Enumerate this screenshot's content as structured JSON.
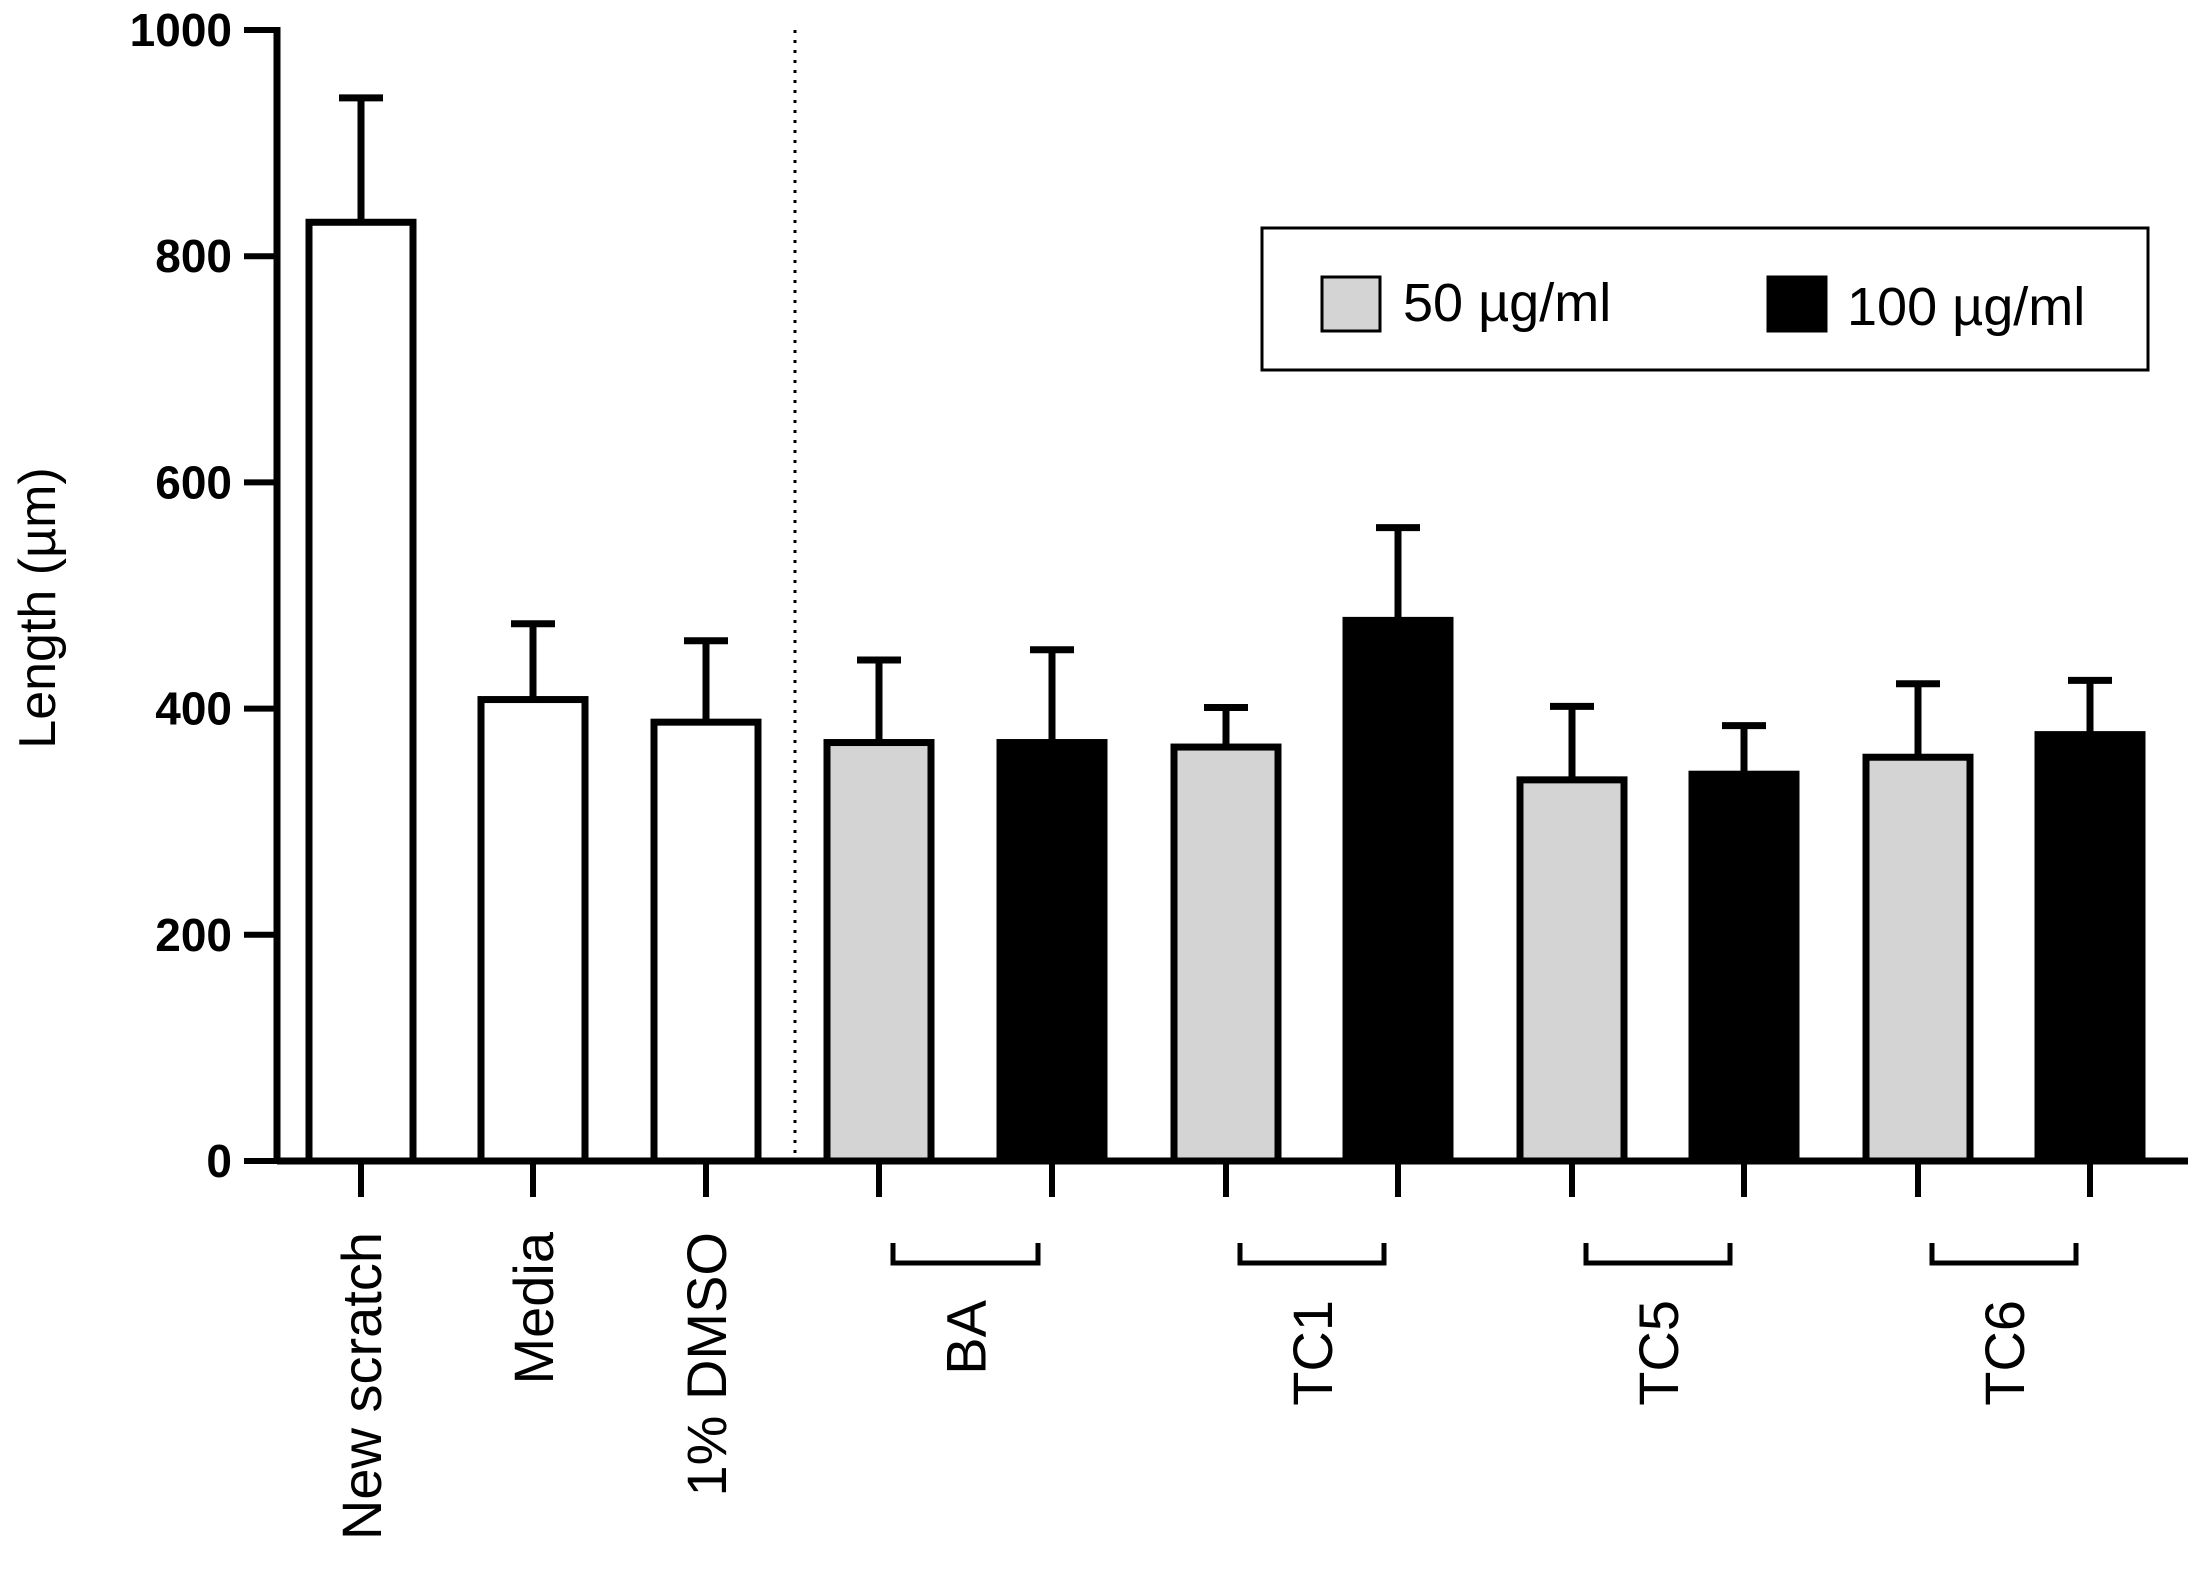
{
  "chart_data": {
    "type": "bar",
    "title": "",
    "xlabel": "",
    "ylabel": "Length (µm)",
    "ylim": [
      0,
      1000
    ],
    "yticks": [
      0,
      200,
      400,
      600,
      800,
      1000
    ],
    "grid": false,
    "legend": {
      "placement": "top-right",
      "entries": [
        {
          "label": "50 µg/ml",
          "color": "#d4d4d4"
        },
        {
          "label": "100 µg/ml",
          "color": "#000000"
        }
      ]
    },
    "controls": {
      "categories": [
        "New scratch",
        "Media",
        "1% DMSO"
      ],
      "values": [
        830,
        408,
        388
      ],
      "errors": [
        110,
        67,
        72
      ],
      "color": "#ffffff"
    },
    "treatment_groups": [
      "BA",
      "TC1",
      "TC5",
      "TC6"
    ],
    "series": [
      {
        "name": "50 µg/ml",
        "color": "#d4d4d4",
        "values": [
          370,
          366,
          337,
          357
        ],
        "errors": [
          73,
          35,
          65,
          65
        ]
      },
      {
        "name": "100 µg/ml",
        "color": "#000000",
        "values": [
          370,
          478,
          342,
          377
        ],
        "errors": [
          82,
          82,
          43,
          48
        ]
      }
    ],
    "separator": "dotted line between controls and treatments"
  }
}
